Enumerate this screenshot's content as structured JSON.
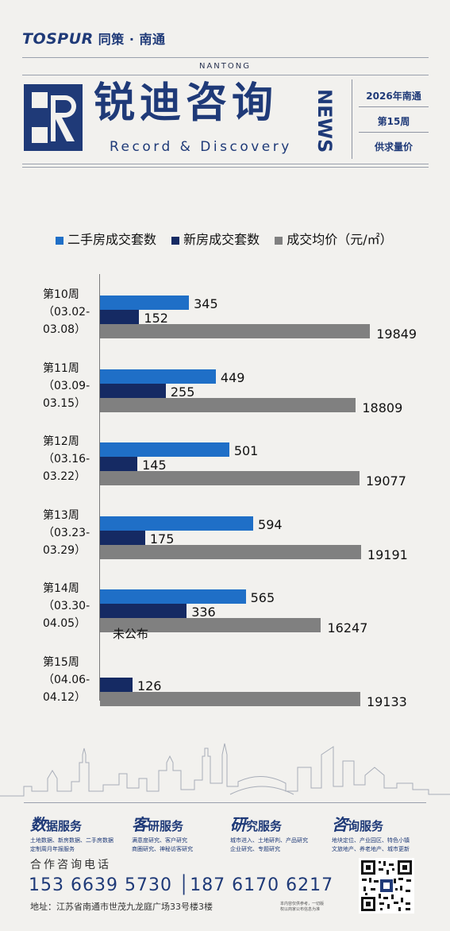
{
  "header": {
    "logo_text": "TOSPUR",
    "logo_cn": "同策 · 南通",
    "city_en": "NANTONG",
    "brand_cn": "锐迪咨询",
    "brand_en": "Record & Discovery",
    "news": "NEWS",
    "side_items": [
      "2026年南通",
      "第15周",
      "供求量价"
    ]
  },
  "chart_data": {
    "type": "bar",
    "orientation": "horizontal",
    "title": "",
    "legend_position": "top",
    "categories": [
      [
        "第10周",
        "（03.02-",
        "03.08）"
      ],
      [
        "第11周",
        "（03.09-",
        "03.15）"
      ],
      [
        "第12周",
        "（03.16-",
        "03.22）"
      ],
      [
        "第13周",
        "（03.23-",
        "03.29）"
      ],
      [
        "第14周",
        "（03.30-",
        "04.05）"
      ],
      [
        "第15周",
        "（04.06-",
        "04.12）"
      ]
    ],
    "series": [
      {
        "name": "二手房成交套数",
        "color": "#1f6fc7",
        "values": [
          345,
          449,
          501,
          594,
          565,
          null
        ]
      },
      {
        "name": "新房成交套数",
        "color": "#152a63",
        "values": [
          152,
          255,
          145,
          175,
          336,
          126
        ]
      },
      {
        "name": "成交均价（元/㎡）",
        "color": "#808080",
        "values": [
          19849,
          18809,
          19077,
          19191,
          16247,
          19133
        ]
      }
    ],
    "missing_label": "未公布"
  },
  "services": [
    {
      "title_big": "数",
      "title_rest": "据服务",
      "lines": [
        "土地数据、新房数据、二手房数据",
        "定制周月年报服务"
      ]
    },
    {
      "title_big": "客",
      "title_rest": "研服务",
      "lines": [
        "满意度研究、客户研究",
        "商圈研究、神秘访客研究"
      ]
    },
    {
      "title_big": "研",
      "title_rest": "究服务",
      "lines": [
        "城市进入、土地研判、产品研究",
        "企业研究、专题研究"
      ]
    },
    {
      "title_big": "咨",
      "title_rest": "询服务",
      "lines": [
        "地块定位、产业园区、特色小镇",
        "文旅地产、养老地产、城市更新"
      ]
    }
  ],
  "footer": {
    "hotline_title": "合作咨询电话",
    "phones": "153 6639 5730 │187 6170 6217",
    "address": "地址：江苏省南通市世茂九龙庭广场33号楼3楼",
    "note": "本内容仅供参考，一切版权以商家公布信息为准"
  }
}
